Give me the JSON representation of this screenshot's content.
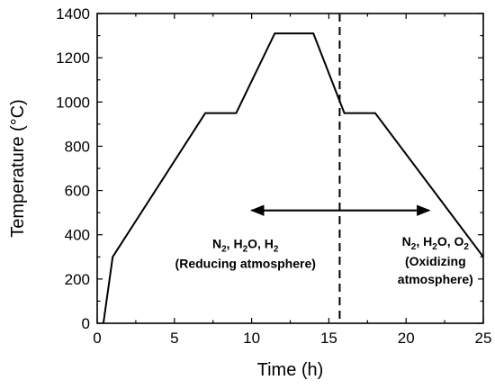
{
  "chart_data": {
    "type": "line",
    "xlabel": "Time (h)",
    "ylabel": "Temperature (°C)",
    "xlim": [
      0,
      25
    ],
    "ylim": [
      0,
      1400
    ],
    "xticks": [
      0,
      5,
      10,
      15,
      20,
      25
    ],
    "yticks": [
      0,
      200,
      400,
      600,
      800,
      1000,
      1200,
      1400
    ],
    "grid": false,
    "series": [
      {
        "x": [
          0.4,
          1.0,
          7.0,
          9.0,
          11.5,
          14.0,
          16.0,
          18.0,
          25.0
        ],
        "y": [
          0,
          300,
          950,
          950,
          1310,
          1310,
          950,
          950,
          300
        ],
        "color": "#000000"
      }
    ],
    "vline": {
      "x": 15.7,
      "style": "dashed"
    },
    "arrow": {
      "x_from": 10.0,
      "x_to": 21.5,
      "y": 510,
      "bidirectional": true
    },
    "annotations": [
      {
        "id": "reducing",
        "line1": "N2, H2O, H2",
        "line2": "(Reducing atmosphere)",
        "x": 9.6,
        "y": 340
      },
      {
        "id": "oxidizing",
        "line1": "N2, H2O, O2",
        "line2": "(Oxidizing",
        "line3": "atmosphere)",
        "x": 21.9,
        "y": 350
      }
    ]
  }
}
